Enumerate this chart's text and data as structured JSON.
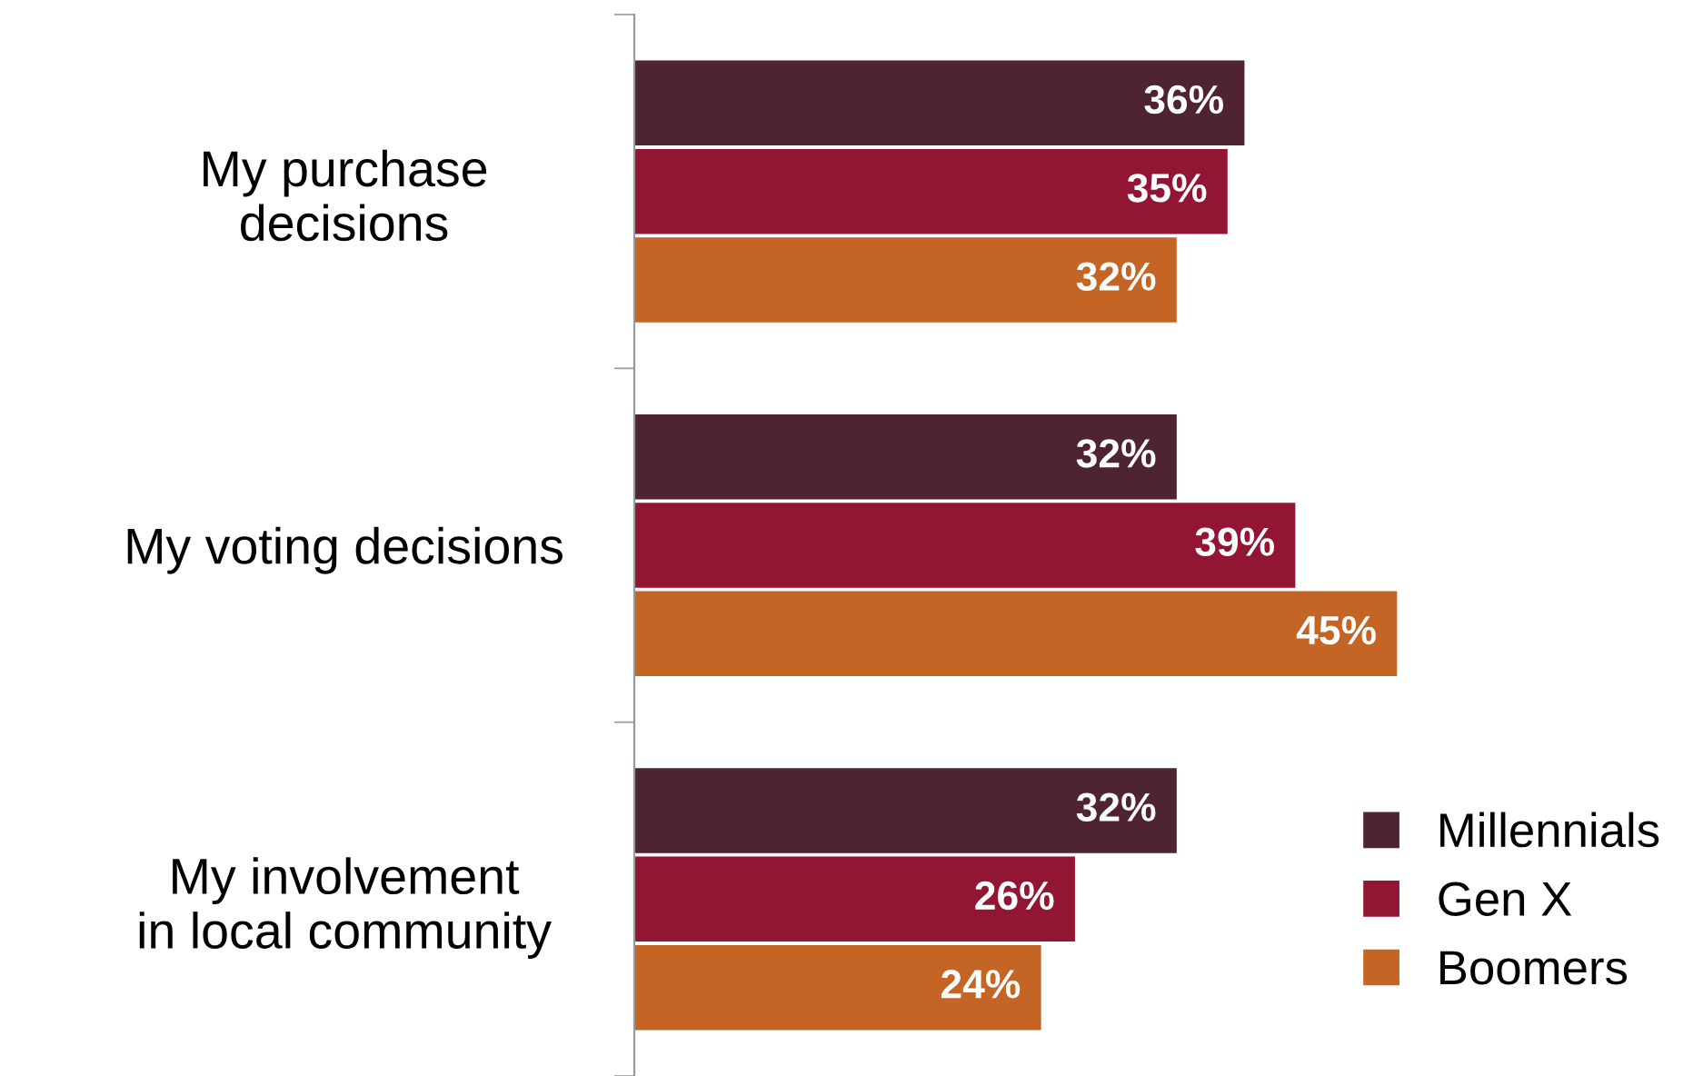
{
  "chart_data": {
    "type": "bar",
    "orientation": "horizontal",
    "categories": [
      "My purchase\ndecisions",
      "My voting decisions",
      "My involvement\nin local community"
    ],
    "series": [
      {
        "name": "Millennials",
        "color": "#4e2431",
        "values": [
          36,
          32,
          32
        ],
        "value_labels": [
          "36%",
          "32%",
          "32%"
        ]
      },
      {
        "name": "Gen X",
        "color": "#921534",
        "values": [
          35,
          39,
          26
        ],
        "value_labels": [
          "35%",
          "39%",
          "26%"
        ]
      },
      {
        "name": "Boomers",
        "color": "#c56525",
        "values": [
          32,
          45,
          24
        ],
        "value_labels": [
          "32%",
          "45%",
          "24%"
        ]
      }
    ],
    "legend": "bottom right",
    "grid": false
  }
}
